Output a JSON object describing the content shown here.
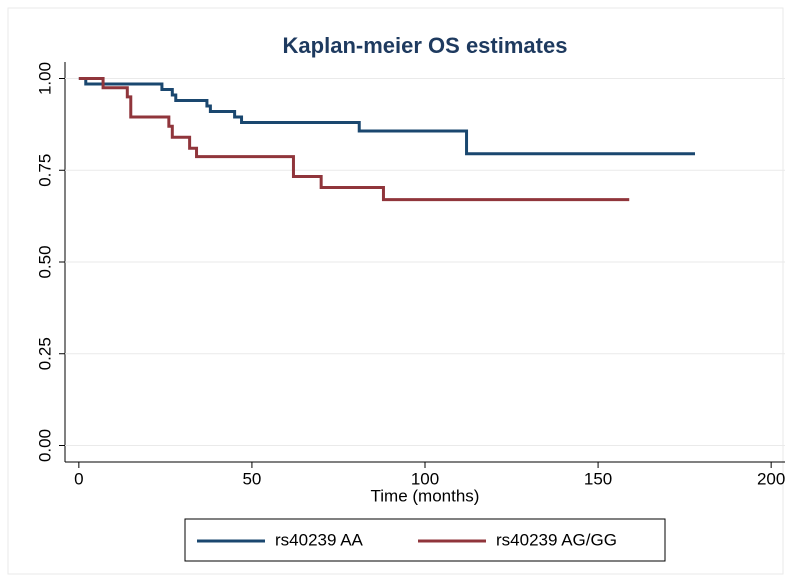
{
  "chart_data": {
    "type": "step",
    "title": "Kaplan-meier OS estimates",
    "x_label": "Time (months)",
    "xlim": [
      -4,
      204
    ],
    "xticks": [
      0,
      50,
      100,
      150,
      200
    ],
    "ylim": [
      -0.045,
      1.045
    ],
    "yticks": [
      {
        "value": 0,
        "label": "0.00"
      },
      {
        "value": 0.25,
        "label": "0.25"
      },
      {
        "value": 0.5,
        "label": "0.50"
      },
      {
        "value": 0.75,
        "label": "0.75"
      },
      {
        "value": 1,
        "label": "1.00"
      }
    ],
    "grid": true,
    "series": [
      {
        "name": "rs40239 AA",
        "color": "#1a476f",
        "x": [
          0,
          2,
          24,
          27,
          28,
          37,
          38,
          45,
          47,
          81,
          112,
          178
        ],
        "values": [
          1.0,
          0.985,
          0.97,
          0.955,
          0.94,
          0.925,
          0.91,
          0.895,
          0.88,
          0.857,
          0.795,
          0.795
        ]
      },
      {
        "name": "rs40239 AG/GG",
        "color": "#90353b",
        "x": [
          0,
          7,
          14,
          15,
          26,
          27,
          32,
          34,
          62,
          70,
          88,
          159
        ],
        "values": [
          1.0,
          0.975,
          0.95,
          0.895,
          0.87,
          0.84,
          0.81,
          0.787,
          0.733,
          0.703,
          0.67,
          0.67
        ]
      }
    ]
  }
}
